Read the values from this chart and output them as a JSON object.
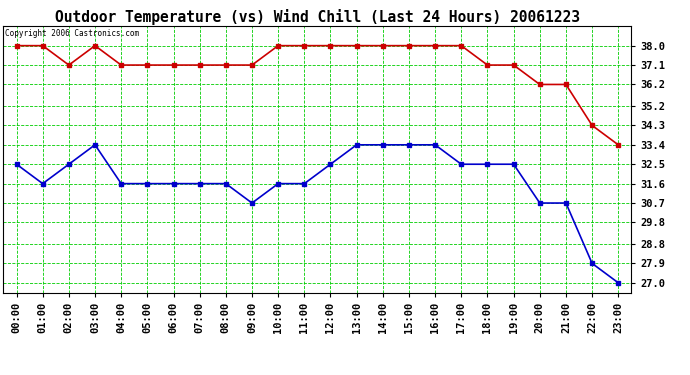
{
  "title": "Outdoor Temperature (vs) Wind Chill (Last 24 Hours) 20061223",
  "copyright": "Copyright 2006 Castronics.com",
  "x_labels": [
    "00:00",
    "01:00",
    "02:00",
    "03:00",
    "04:00",
    "05:00",
    "06:00",
    "07:00",
    "08:00",
    "09:00",
    "10:00",
    "11:00",
    "12:00",
    "13:00",
    "14:00",
    "15:00",
    "16:00",
    "17:00",
    "18:00",
    "19:00",
    "20:00",
    "21:00",
    "22:00",
    "23:00"
  ],
  "outdoor_temp": [
    32.5,
    31.6,
    32.5,
    33.4,
    31.6,
    31.6,
    31.6,
    31.6,
    31.6,
    30.7,
    31.6,
    31.6,
    32.5,
    33.4,
    33.4,
    33.4,
    33.4,
    32.5,
    32.5,
    32.5,
    30.7,
    30.7,
    27.9,
    27.0
  ],
  "wind_chill": [
    38.0,
    38.0,
    37.1,
    38.0,
    37.1,
    37.1,
    37.1,
    37.1,
    37.1,
    37.1,
    38.0,
    38.0,
    38.0,
    38.0,
    38.0,
    38.0,
    38.0,
    38.0,
    37.1,
    37.1,
    36.2,
    36.2,
    34.3,
    33.4
  ],
  "temp_color": "#0000cc",
  "chill_color": "#cc0000",
  "bg_color": "#ffffff",
  "grid_color": "#00cc00",
  "ylim_min": 26.55,
  "ylim_max": 38.9,
  "yticks": [
    27.0,
    27.9,
    28.8,
    29.8,
    30.7,
    31.6,
    32.5,
    33.4,
    34.3,
    35.2,
    36.2,
    37.1,
    38.0
  ],
  "title_fontsize": 10.5,
  "tick_fontsize": 7.5,
  "copyright_fontsize": 5.5
}
